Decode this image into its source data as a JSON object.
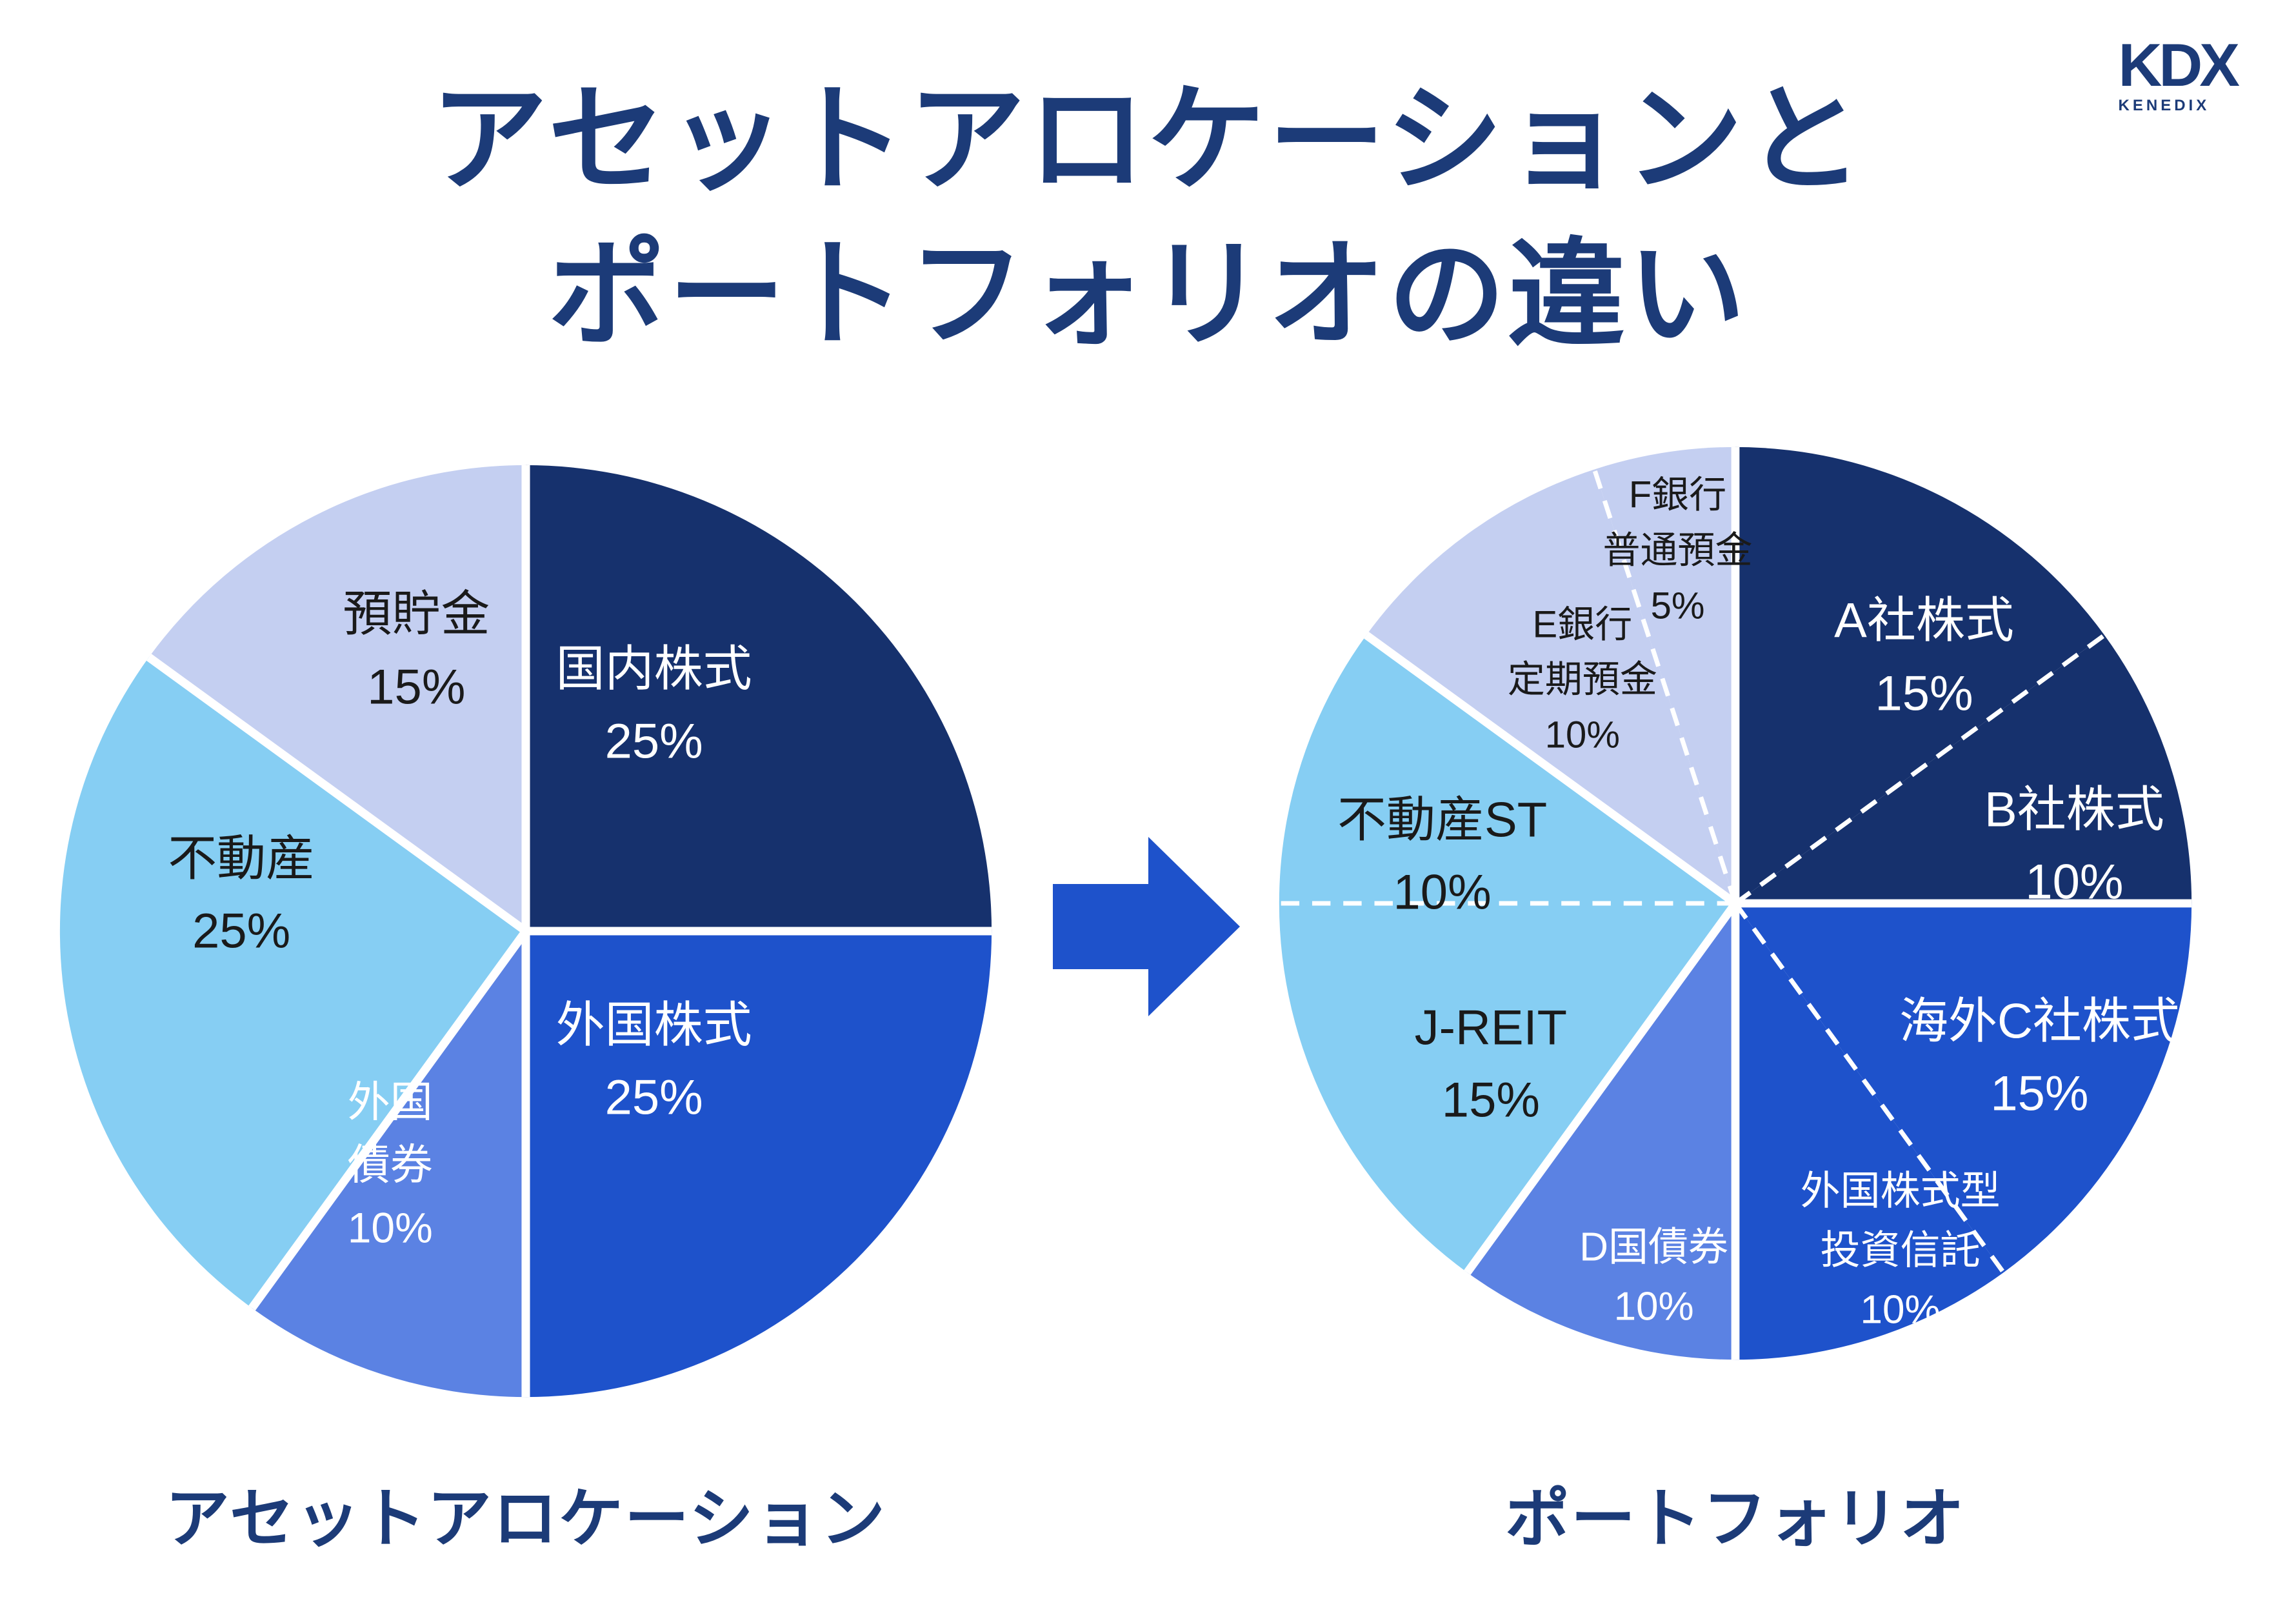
{
  "page": {
    "background": "#ffffff"
  },
  "logo": {
    "text": "KDX",
    "subtext": "KENEDIX",
    "color": "#1C3B78"
  },
  "title": {
    "lines": [
      "アセットアロケーションと",
      "ポートフォリオの違い"
    ],
    "color": "#1C3B78"
  },
  "arrow": {
    "name": "right-arrow",
    "color": "#1E52CB",
    "direction": "right"
  },
  "palette": {
    "navy": "#16316D",
    "bright_blue": "#1E52CB",
    "medium_blue": "#5B82E3",
    "sky_blue": "#86CEF3",
    "lavender": "#C4CFF1",
    "divider_white": "#ffffff",
    "dark_text": "#1A1A1A",
    "light_text": "#FFFFFF"
  },
  "chart_data": [
    {
      "type": "pie",
      "name": "asset-allocation",
      "caption": "アセットアロケーション",
      "units": "%",
      "total": 100,
      "start_angle_deg": 0,
      "direction": "clockwise",
      "legend": "none",
      "categories": [
        "国内株式",
        "外国株式",
        "外国債券",
        "不動産",
        "預貯金"
      ],
      "values": [
        25,
        25,
        10,
        25,
        15
      ],
      "slices": [
        {
          "id": "domestic-stocks",
          "lines": [
            "国内株式"
          ],
          "pct": "25%",
          "value": 25,
          "group": "domestic-stocks",
          "color": "#16316D",
          "text_color": "#FFFFFF",
          "divider_before": "solid",
          "label_pos": [
            0.637,
            0.259
          ],
          "font_px": 76
        },
        {
          "id": "foreign-stocks",
          "lines": [
            "外国株式"
          ],
          "pct": "25%",
          "value": 25,
          "group": "foreign-stocks",
          "color": "#1E52CB",
          "text_color": "#FFFFFF",
          "divider_before": "solid",
          "label_pos": [
            0.637,
            0.64
          ],
          "font_px": 76
        },
        {
          "id": "foreign-bonds",
          "lines": [
            "外国",
            "債券"
          ],
          "pct": "10%",
          "value": 10,
          "group": "foreign-bonds",
          "color": "#5B82E3",
          "text_color": "#FFFFFF",
          "divider_before": "solid",
          "label_pos": [
            0.355,
            0.75
          ],
          "font_px": 66
        },
        {
          "id": "real-estate",
          "lines": [
            "不動産"
          ],
          "pct": "25%",
          "value": 25,
          "group": "real-estate",
          "color": "#86CEF3",
          "text_color": "#1A1A1A",
          "divider_before": "solid",
          "label_pos": [
            0.196,
            0.462
          ],
          "font_px": 76
        },
        {
          "id": "savings",
          "lines": [
            "預貯金"
          ],
          "pct": "15%",
          "value": 15,
          "group": "savings",
          "color": "#C4CFF1",
          "text_color": "#1A1A1A",
          "divider_before": "solid",
          "label_pos": [
            0.383,
            0.201
          ],
          "font_px": 76
        }
      ]
    },
    {
      "type": "pie",
      "name": "portfolio",
      "caption": "ポートフォリオ",
      "units": "%",
      "total": 100,
      "start_angle_deg": 0,
      "direction": "clockwise",
      "legend": "none",
      "categories": [
        "A社株式",
        "B社株式",
        "海外C社株式",
        "外国株式型投資信託",
        "D国債券",
        "J-REIT",
        "不動産ST",
        "E銀行定期預金",
        "F銀行普通預金"
      ],
      "values": [
        15,
        10,
        15,
        10,
        10,
        15,
        10,
        10,
        5
      ],
      "slices": [
        {
          "id": "company-a-stock",
          "lines": [
            "A社株式"
          ],
          "pct": "15%",
          "value": 15,
          "group": "domestic-stocks",
          "color": "#16316D",
          "text_color": "#FFFFFF",
          "divider_before": "solid",
          "label_pos": [
            0.706,
            0.232
          ],
          "font_px": 76
        },
        {
          "id": "company-b-stock",
          "lines": [
            "B社株式"
          ],
          "pct": "10%",
          "value": 10,
          "group": "domestic-stocks",
          "color": "#16316D",
          "text_color": "#FFFFFF",
          "divider_before": "dashed",
          "label_pos": [
            0.87,
            0.438
          ],
          "font_px": 76
        },
        {
          "id": "overseas-company-c-stock",
          "lines": [
            "海外C社株式"
          ],
          "pct": "15%",
          "value": 15,
          "group": "foreign-stocks",
          "color": "#1E52CB",
          "text_color": "#FFFFFF",
          "divider_before": "solid",
          "label_pos": [
            0.832,
            0.669
          ],
          "font_px": 76
        },
        {
          "id": "foreign-equity-fund",
          "lines": [
            "外国株式型",
            "投資信託"
          ],
          "pct": "10%",
          "value": 10,
          "group": "foreign-stocks",
          "color": "#1E52CB",
          "text_color": "#FFFFFF",
          "divider_before": "dashed",
          "label_pos": [
            0.68,
            0.879
          ],
          "font_px": 62
        },
        {
          "id": "country-d-bonds",
          "lines": [
            "D国債券"
          ],
          "pct": "10%",
          "value": 10,
          "group": "foreign-bonds",
          "color": "#5B82E3",
          "text_color": "#FFFFFF",
          "divider_before": "solid",
          "label_pos": [
            0.411,
            0.908
          ],
          "font_px": 62
        },
        {
          "id": "j-reit",
          "lines": [
            "J-REIT"
          ],
          "pct": "15%",
          "value": 15,
          "group": "real-estate",
          "color": "#86CEF3",
          "text_color": "#1A1A1A",
          "divider_before": "solid",
          "label_pos": [
            0.233,
            0.676
          ],
          "font_px": 76
        },
        {
          "id": "real-estate-st",
          "lines": [
            "不動産ST"
          ],
          "pct": "10%",
          "value": 10,
          "group": "real-estate",
          "color": "#86CEF3",
          "text_color": "#1A1A1A",
          "divider_before": "dashed",
          "label_pos": [
            0.18,
            0.449
          ],
          "font_px": 76
        },
        {
          "id": "bank-e-time-deposit",
          "lines": [
            "E銀行",
            "定期預金"
          ],
          "pct": "10%",
          "value": 10,
          "group": "savings",
          "color": "#C4CFF1",
          "text_color": "#1A1A1A",
          "divider_before": "solid",
          "label_pos": [
            0.333,
            0.256
          ],
          "font_px": 58
        },
        {
          "id": "bank-f-ordinary-deposit",
          "lines": [
            "F銀行",
            "普通預金"
          ],
          "pct": "5%",
          "value": 5,
          "group": "savings",
          "color": "#C4CFF1",
          "text_color": "#1A1A1A",
          "divider_before": "dashed",
          "label_pos": [
            0.437,
            0.115
          ],
          "font_px": 58
        }
      ]
    }
  ]
}
